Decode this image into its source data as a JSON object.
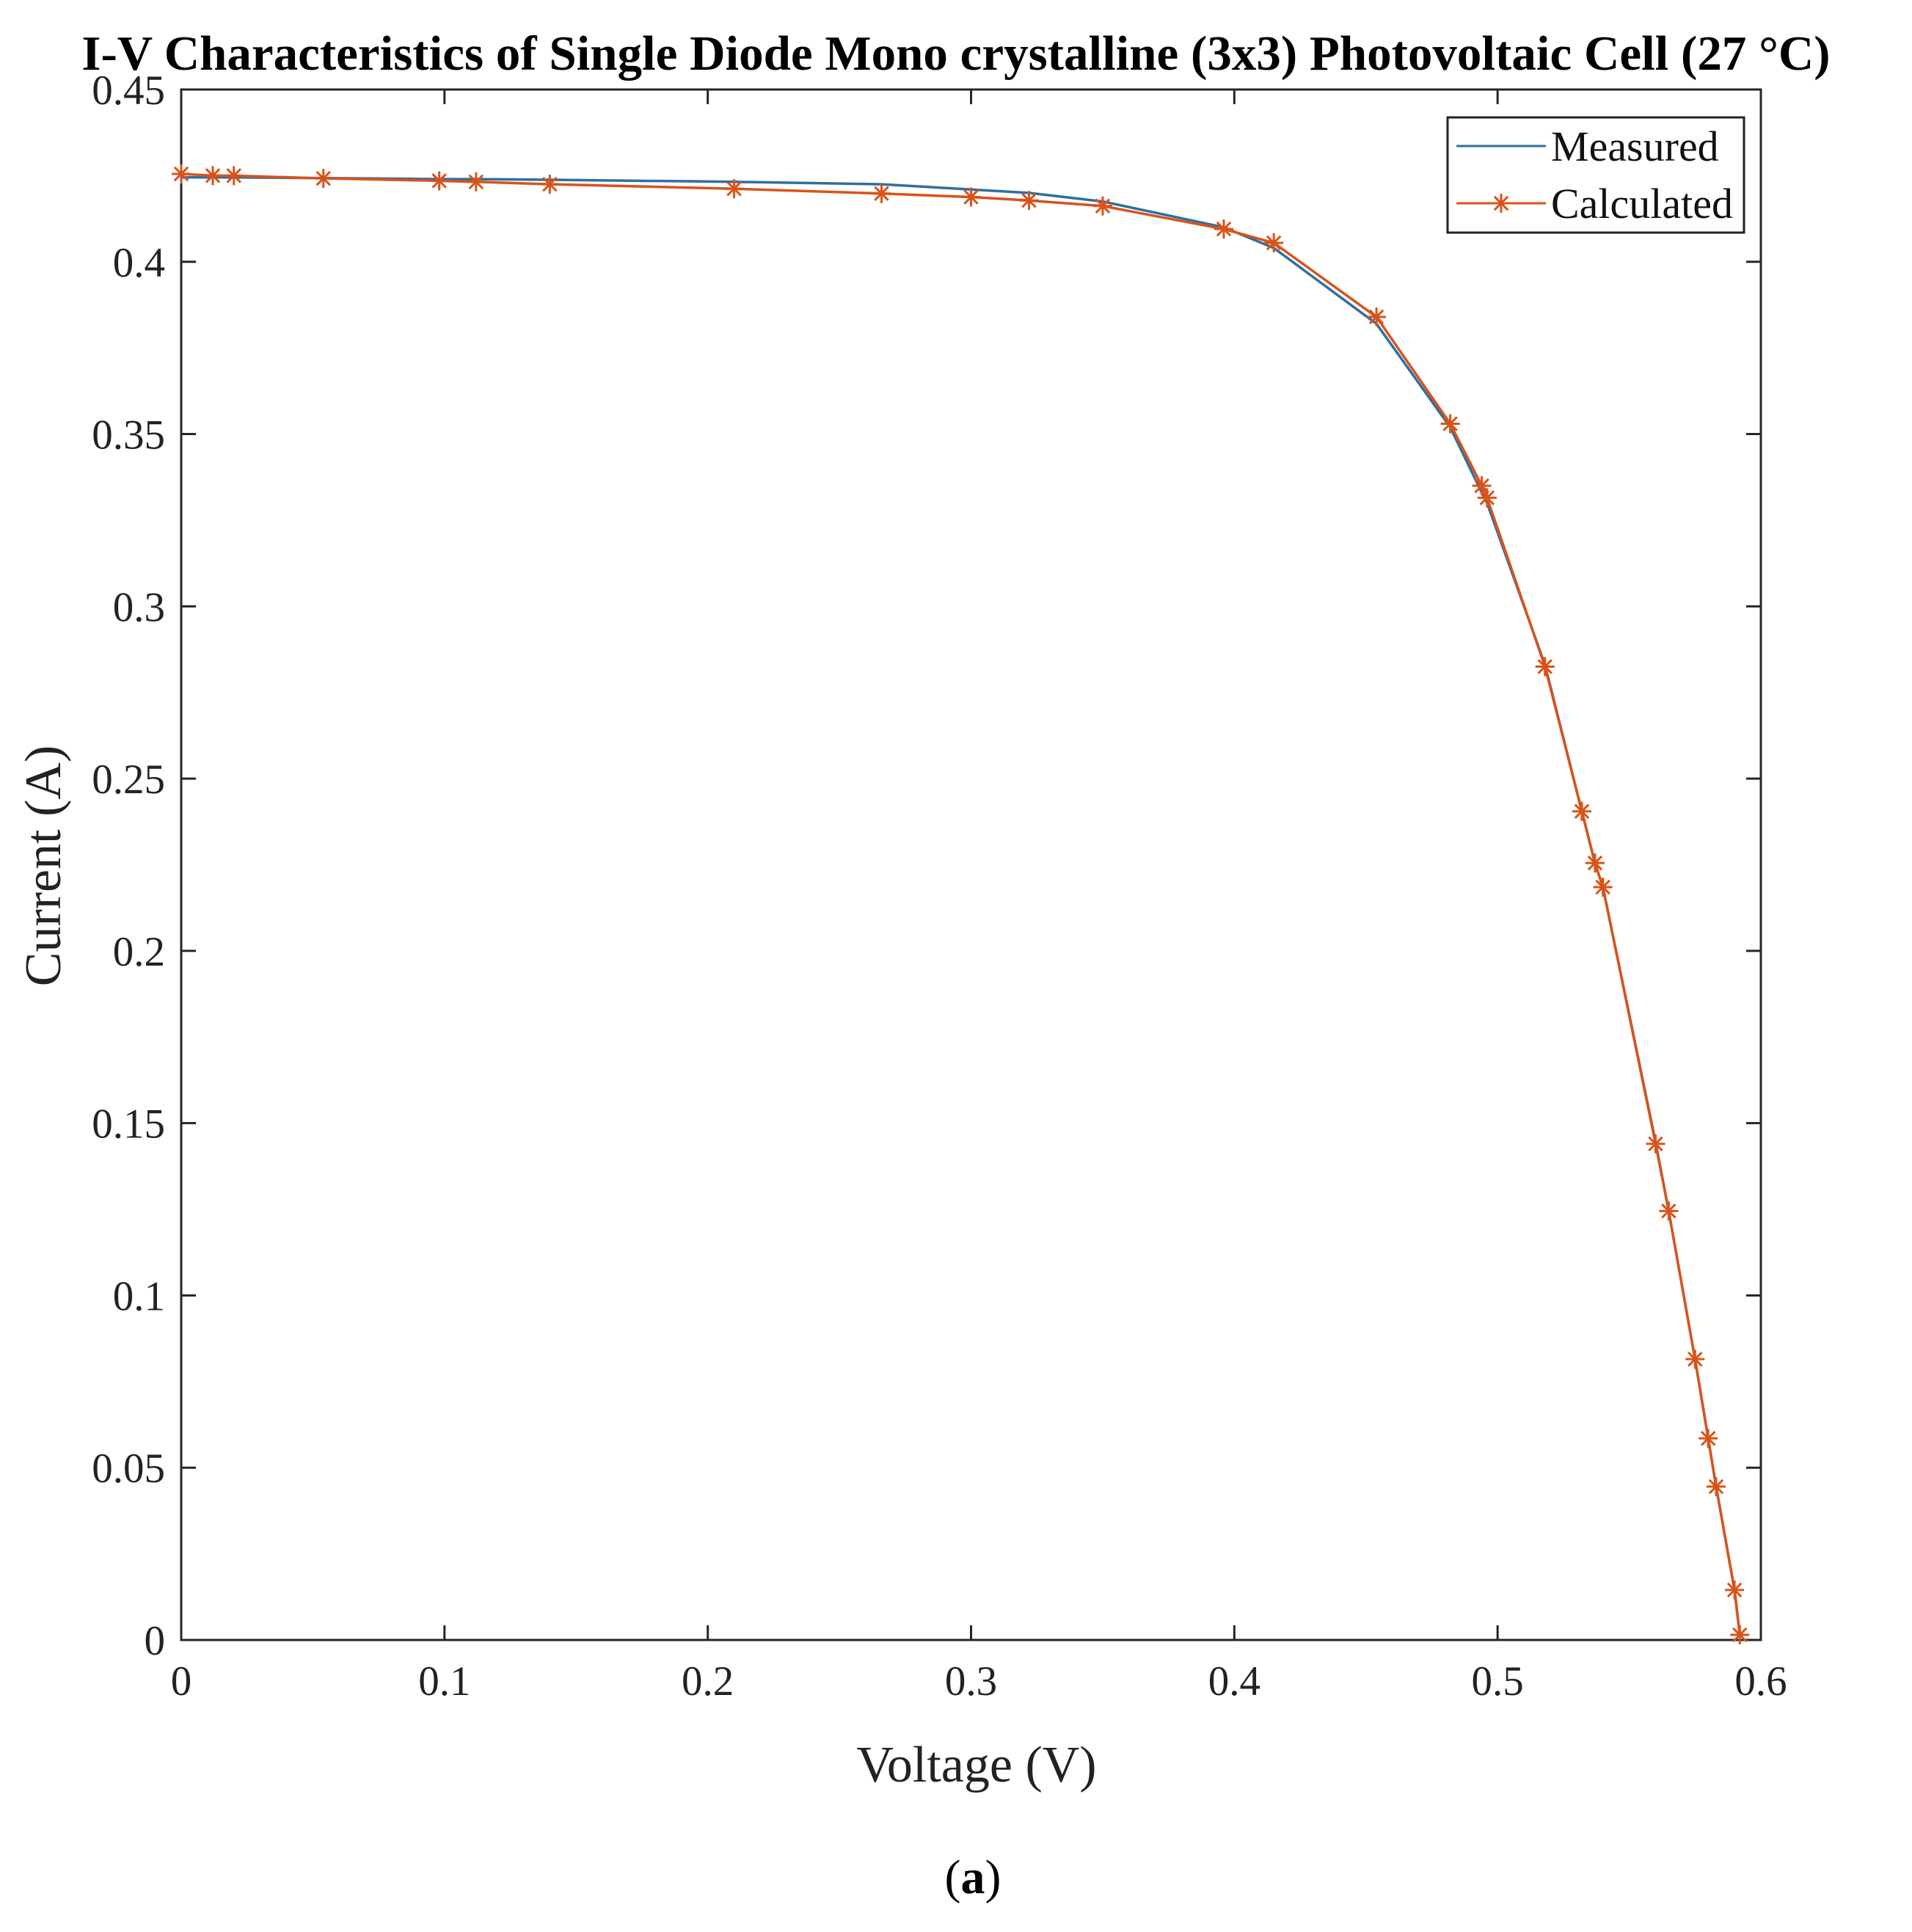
{
  "chart_data": {
    "type": "line",
    "title": "I-V Characteristics of Single Diode Mono crystalline (3x3) Photovoltaic Cell (27 °C)",
    "xlabel": "Voltage (V)",
    "ylabel": "Current (A)",
    "xlim": [
      0,
      0.6
    ],
    "ylim": [
      0,
      0.45
    ],
    "xticks": [
      "0",
      "0.1",
      "0.2",
      "0.3",
      "0.4",
      "0.5",
      "0.6"
    ],
    "yticks": [
      "0",
      "0.05",
      "0.1",
      "0.15",
      "0.2",
      "0.25",
      "0.3",
      "0.35",
      "0.4",
      "0.45"
    ],
    "grid": false,
    "legend_position": "top-right",
    "caption_prefix": "(",
    "caption_letter": "a",
    "caption_suffix": ")",
    "series": [
      {
        "name": "Measured",
        "color": "#2f6f9f",
        "marker": "none",
        "x": [
          0,
          0.012,
          0.02,
          0.054,
          0.098,
          0.112,
          0.14,
          0.21,
          0.266,
          0.3,
          0.322,
          0.35,
          0.396,
          0.415,
          0.454,
          0.482,
          0.494,
          0.496,
          0.518,
          0.532,
          0.537,
          0.54,
          0.56,
          0.565,
          0.575,
          0.58,
          0.583,
          0.59,
          0.592
        ],
        "y": [
          0.4245,
          0.4245,
          0.4245,
          0.4243,
          0.424,
          0.424,
          0.4238,
          0.4232,
          0.4225,
          0.421,
          0.42,
          0.4175,
          0.41,
          0.404,
          0.382,
          0.352,
          0.333,
          0.33,
          0.283,
          0.2405,
          0.2255,
          0.2185,
          0.1445,
          0.1245,
          0.0815,
          0.0585,
          0.0445,
          0.0145,
          0.0015
        ]
      },
      {
        "name": "Calculated",
        "color": "#d95319",
        "marker": "asterisk",
        "x": [
          0,
          0.012,
          0.02,
          0.054,
          0.098,
          0.112,
          0.14,
          0.21,
          0.266,
          0.3,
          0.322,
          0.35,
          0.396,
          0.415,
          0.454,
          0.482,
          0.494,
          0.496,
          0.518,
          0.532,
          0.537,
          0.54,
          0.56,
          0.565,
          0.575,
          0.58,
          0.583,
          0.59,
          0.592
        ],
        "y": [
          0.4255,
          0.425,
          0.425,
          0.4242,
          0.4235,
          0.4232,
          0.4225,
          0.4212,
          0.4198,
          0.4188,
          0.4178,
          0.4162,
          0.4095,
          0.4055,
          0.384,
          0.353,
          0.335,
          0.3315,
          0.2825,
          0.2405,
          0.2255,
          0.2185,
          0.144,
          0.1245,
          0.0815,
          0.0585,
          0.0445,
          0.0145,
          0.0015
        ]
      }
    ]
  }
}
